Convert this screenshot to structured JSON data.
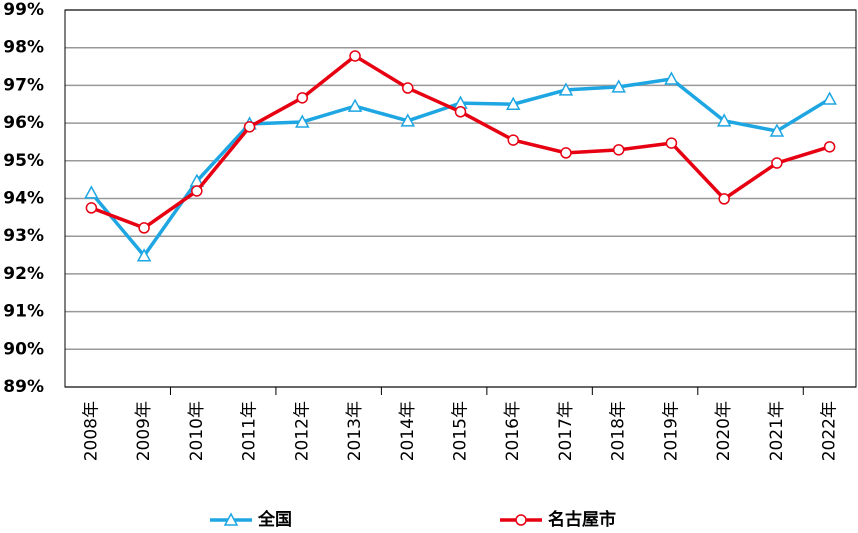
{
  "chart_data": {
    "type": "line",
    "categories": [
      "2008年",
      "2009年",
      "2010年",
      "2011年",
      "2012年",
      "2013年",
      "2014年",
      "2015年",
      "2016年",
      "2017年",
      "2018年",
      "2019年",
      "2020年",
      "2021年",
      "2022年"
    ],
    "series": [
      {
        "name": "全国",
        "color": "#1ea6e2",
        "marker": "triangle",
        "values": [
          94.15,
          92.48,
          94.46,
          95.98,
          96.03,
          96.45,
          96.06,
          96.53,
          96.5,
          96.88,
          96.96,
          97.17,
          96.06,
          95.79,
          96.64
        ]
      },
      {
        "name": "名古屋市",
        "color": "#e60012",
        "marker": "circle",
        "values": [
          93.75,
          93.22,
          94.2,
          95.9,
          96.67,
          97.78,
          96.93,
          96.3,
          95.55,
          95.21,
          95.29,
          95.47,
          93.99,
          94.94,
          95.37
        ]
      }
    ],
    "ylim": [
      89,
      99
    ],
    "yticks": [
      {
        "value": 89,
        "label": "89%"
      },
      {
        "value": 90,
        "label": "90%"
      },
      {
        "value": 91,
        "label": "91%"
      },
      {
        "value": 92,
        "label": "92%"
      },
      {
        "value": 93,
        "label": "93%"
      },
      {
        "value": 94,
        "label": "94%"
      },
      {
        "value": 95,
        "label": "95%"
      },
      {
        "value": 96,
        "label": "96%"
      },
      {
        "value": 97,
        "label": "97%"
      },
      {
        "value": 98,
        "label": "98%"
      },
      {
        "value": 99,
        "label": "99%"
      }
    ],
    "grid": true,
    "legend": "bottom"
  }
}
